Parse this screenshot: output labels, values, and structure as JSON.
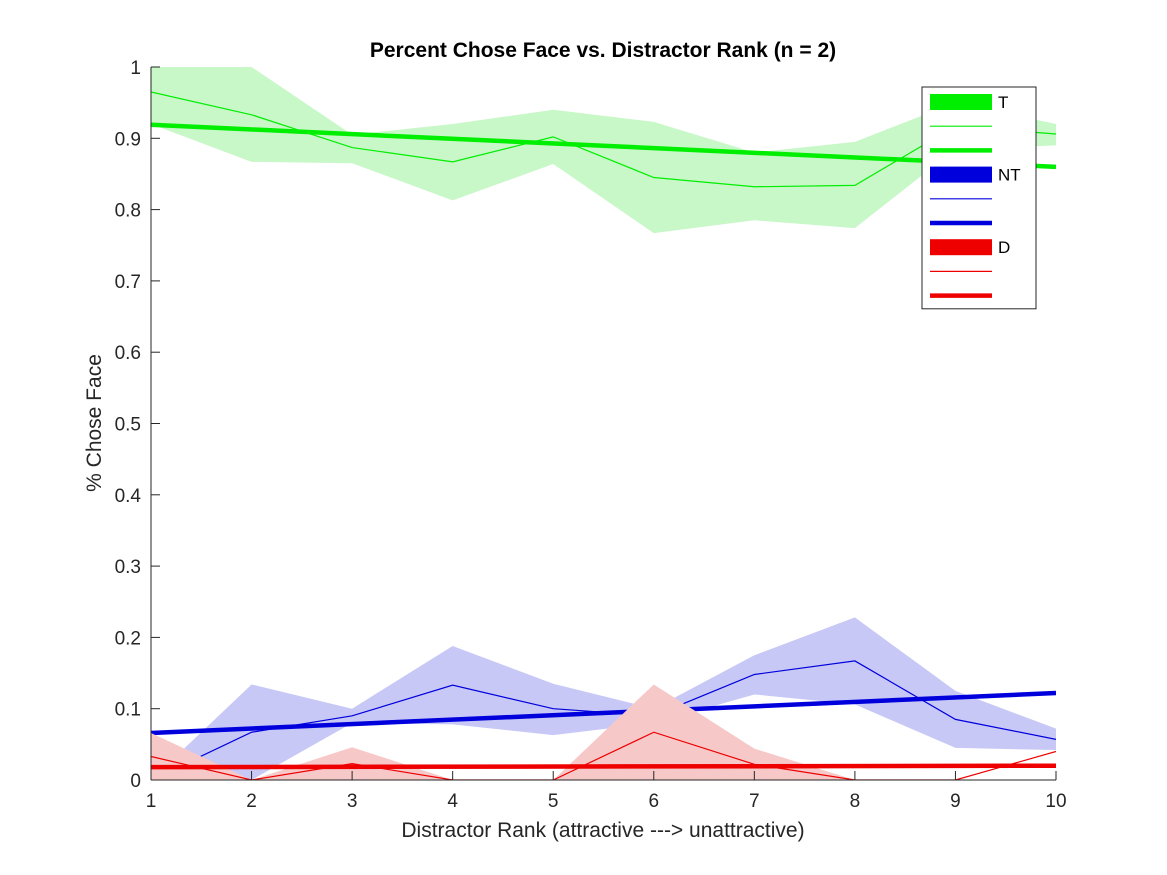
{
  "chart_data": {
    "type": "line",
    "title": "Percent Chose Face vs. Distractor Rank (n = 2)",
    "xlabel": "Distractor Rank (attractive ---> unattractive)",
    "ylabel": "% Chose Face",
    "xlim": [
      1,
      10
    ],
    "ylim": [
      0,
      1
    ],
    "x": [
      1,
      2,
      3,
      4,
      5,
      6,
      7,
      8,
      9,
      10
    ],
    "x_ticks": [
      "1",
      "2",
      "3",
      "4",
      "5",
      "6",
      "7",
      "8",
      "9",
      "10"
    ],
    "y_ticks": [
      "0",
      "0.1",
      "0.2",
      "0.3",
      "0.4",
      "0.5",
      "0.6",
      "0.7",
      "0.8",
      "0.9",
      "1"
    ],
    "grid": false,
    "legend_position": "top-right",
    "series": [
      {
        "name": "T",
        "color": "#00ee00",
        "band_color": "#c8f7c8",
        "mean": [
          0.965,
          0.933,
          0.887,
          0.867,
          0.902,
          0.845,
          0.832,
          0.834,
          0.917,
          0.906
        ],
        "band_upper": [
          1.0,
          1.0,
          0.905,
          0.92,
          0.94,
          0.923,
          0.88,
          0.895,
          0.95,
          0.92
        ],
        "band_lower": [
          0.92,
          0.867,
          0.865,
          0.813,
          0.864,
          0.767,
          0.785,
          0.774,
          0.885,
          0.89
        ],
        "fit": [
          0.919,
          0.86
        ]
      },
      {
        "name": "NT",
        "color": "#0000dd",
        "band_color": "#c8c8f7",
        "mean": [
          0.0,
          0.067,
          0.09,
          0.133,
          0.1,
          0.09,
          0.148,
          0.167,
          0.085,
          0.057
        ],
        "band_upper": [
          0.0,
          0.134,
          0.1,
          0.188,
          0.135,
          0.1,
          0.175,
          0.228,
          0.125,
          0.072
        ],
        "band_lower": [
          0.0,
          0.0,
          0.08,
          0.078,
          0.063,
          0.08,
          0.12,
          0.106,
          0.045,
          0.042
        ],
        "fit": [
          0.066,
          0.122
        ]
      },
      {
        "name": "D",
        "color": "#ee0000",
        "band_color": "#f7c8c8",
        "mean": [
          0.033,
          0.0,
          0.023,
          0.0,
          0.0,
          0.067,
          0.022,
          0.0,
          0.0,
          0.04
        ],
        "band_upper": [
          0.066,
          0.0,
          0.046,
          0.0,
          0.0,
          0.134,
          0.044,
          0.0,
          0.0,
          0.04
        ],
        "band_lower": [
          0.0,
          0.0,
          0.0,
          0.0,
          0.0,
          0.0,
          0.0,
          0.0,
          0.0,
          0.04
        ],
        "fit": [
          0.018,
          0.02
        ]
      }
    ],
    "legend": [
      {
        "label": "T",
        "color": "#00ee00",
        "style": "patch"
      },
      {
        "label": "",
        "color": "#00ee00",
        "style": "thin"
      },
      {
        "label": "",
        "color": "#00ee00",
        "style": "thick"
      },
      {
        "label": "NT",
        "color": "#0000dd",
        "style": "patch"
      },
      {
        "label": "",
        "color": "#0000dd",
        "style": "thin"
      },
      {
        "label": "",
        "color": "#0000dd",
        "style": "thick"
      },
      {
        "label": "D",
        "color": "#ee0000",
        "style": "patch"
      },
      {
        "label": "",
        "color": "#ee0000",
        "style": "thin"
      },
      {
        "label": "",
        "color": "#ee0000",
        "style": "thick"
      }
    ]
  }
}
